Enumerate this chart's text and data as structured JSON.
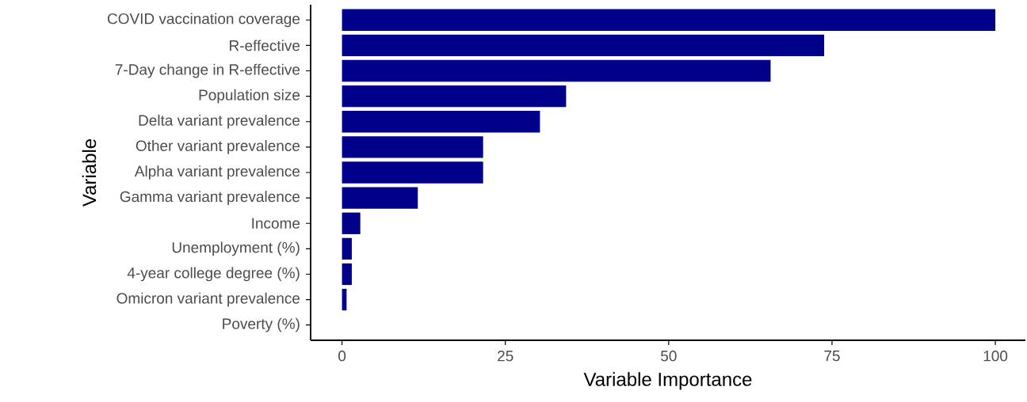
{
  "chart_data": {
    "type": "bar",
    "orientation": "horizontal",
    "xlabel": "Variable Importance",
    "ylabel": "Variable",
    "categories": [
      "COVID vaccination coverage",
      "R-effective",
      "7-Day change in R-effective",
      "Population size",
      "Delta variant prevalence",
      "Other variant prevalence",
      "Alpha variant prevalence",
      "Gamma variant prevalence",
      "Income",
      "Unemployment (%)",
      "4-year college degree (%)",
      "Omicron variant prevalence",
      "Poverty (%)"
    ],
    "values": [
      100,
      73.8,
      65.6,
      34.3,
      30.3,
      21.6,
      21.6,
      11.6,
      2.8,
      1.5,
      1.5,
      0.7,
      0
    ],
    "color": "#00008b",
    "xlim": [
      -4.8,
      104.6
    ],
    "xticks": [
      0,
      25,
      50,
      75,
      100
    ]
  }
}
